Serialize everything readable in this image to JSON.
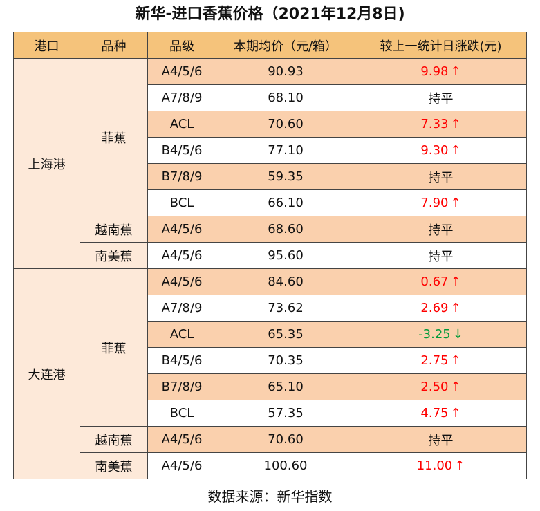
{
  "title": "新华-进口香蕉价格（2021年12月8日)",
  "headers": [
    "港口",
    "品种",
    "品级",
    "本期均价（元/箱）",
    "较上一统计日涨跌(元)"
  ],
  "ports": [
    {
      "name": "上海港",
      "rows": [
        {
          "variety": "菲蕉",
          "grade": "A4/5/6",
          "price": "90.93",
          "change": "9.98",
          "trend": "up"
        },
        {
          "variety": "菲蕉",
          "grade": "A7/8/9",
          "price": "68.10",
          "change": "持平",
          "trend": "flat"
        },
        {
          "variety": "菲蕉",
          "grade": "ACL",
          "price": "70.60",
          "change": "7.33",
          "trend": "up"
        },
        {
          "variety": "菲蕉",
          "grade": "B4/5/6",
          "price": "77.10",
          "change": "9.30",
          "trend": "up"
        },
        {
          "variety": "菲蕉",
          "grade": "B7/8/9",
          "price": "59.35",
          "change": "持平",
          "trend": "flat"
        },
        {
          "variety": "菲蕉",
          "grade": "BCL",
          "price": "66.10",
          "change": "7.90",
          "trend": "up"
        },
        {
          "variety": "越南蕉",
          "grade": "A4/5/6",
          "price": "68.60",
          "change": "持平",
          "trend": "flat"
        },
        {
          "variety": "南美蕉",
          "grade": "A4/5/6",
          "price": "95.60",
          "change": "持平",
          "trend": "flat"
        }
      ]
    },
    {
      "name": "大连港",
      "rows": [
        {
          "variety": "菲蕉",
          "grade": "A4/5/6",
          "price": "84.60",
          "change": "0.67",
          "trend": "up"
        },
        {
          "variety": "菲蕉",
          "grade": "A7/8/9",
          "price": "73.62",
          "change": "2.69",
          "trend": "up"
        },
        {
          "variety": "菲蕉",
          "grade": "ACL",
          "price": "65.35",
          "change": "-3.25",
          "trend": "down"
        },
        {
          "variety": "菲蕉",
          "grade": "B4/5/6",
          "price": "70.35",
          "change": "2.75",
          "trend": "up"
        },
        {
          "variety": "菲蕉",
          "grade": "B7/8/9",
          "price": "65.10",
          "change": "2.50",
          "trend": "up"
        },
        {
          "variety": "菲蕉",
          "grade": "BCL",
          "price": "57.35",
          "change": "4.75",
          "trend": "up"
        },
        {
          "variety": "越南蕉",
          "grade": "A4/5/6",
          "price": "70.60",
          "change": "持平",
          "trend": "flat"
        },
        {
          "variety": "南美蕉",
          "grade": "A4/5/6",
          "price": "100.60",
          "change": "11.00",
          "trend": "up"
        }
      ]
    }
  ],
  "arrows": {
    "up": "↑",
    "down": "↓"
  },
  "colors": {
    "header": "#f5c37b",
    "merged": "#fde9d9",
    "shaded": "#fad0ad",
    "up": "#ff0000",
    "down": "#009a3a"
  },
  "source": "数据来源：新华指数"
}
